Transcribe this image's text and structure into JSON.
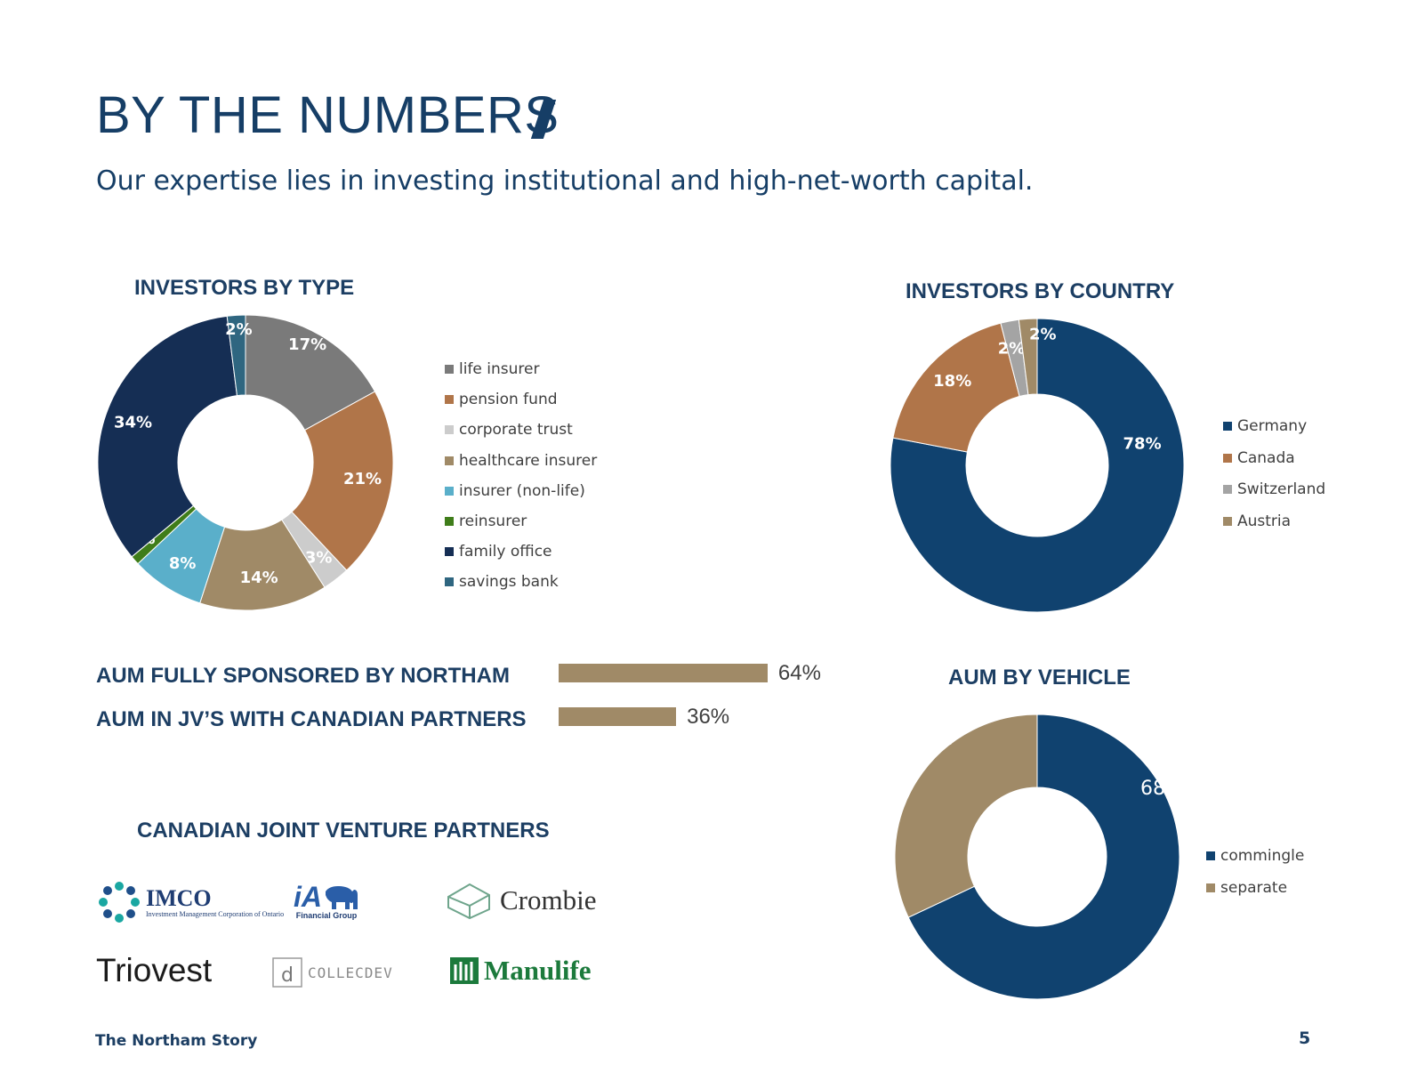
{
  "header": {
    "title": "BY THE NUMBERS",
    "subtitle": "Our expertise lies in investing institutional and high-net-worth capital."
  },
  "chart_data": [
    {
      "type": "pie",
      "title": "INVESTORS BY TYPE",
      "donut": true,
      "categories": [
        "life insurer",
        "pension fund",
        "corporate trust",
        "healthcare insurer",
        "insurer (non-life)",
        "reinsurer",
        "family office",
        "savings bank"
      ],
      "values": [
        17,
        21,
        3,
        14,
        8,
        1,
        34,
        2
      ],
      "labels": [
        "17%",
        "21%",
        "3%",
        "14%",
        "8%",
        "1%",
        "34%",
        "2%"
      ],
      "colors": [
        "#7a7a7a",
        "#b07549",
        "#cccccc",
        "#a08a67",
        "#5aafca",
        "#3f7d1a",
        "#152e54",
        "#2f6680"
      ],
      "legend_position": "right"
    },
    {
      "type": "pie",
      "title": "INVESTORS BY COUNTRY",
      "donut": true,
      "categories": [
        "Germany",
        "Canada",
        "Switzerland",
        "Austria"
      ],
      "values": [
        78,
        18,
        2,
        2
      ],
      "labels": [
        "78%",
        "18%",
        "2%",
        "2%"
      ],
      "colors": [
        "#10426f",
        "#b07549",
        "#a4a4a4",
        "#a08a67"
      ],
      "legend_position": "right"
    },
    {
      "type": "bar",
      "orientation": "horizontal",
      "categories": [
        "AUM FULLY SPONSORED BY NORTHAM",
        "AUM IN JV’S WITH CANADIAN PARTNERS"
      ],
      "values": [
        64,
        36
      ],
      "labels": [
        "64%",
        "36%"
      ],
      "xlim": [
        0,
        100
      ],
      "colors": [
        "#a08a67"
      ]
    },
    {
      "type": "pie",
      "title": "AUM BY VEHICLE",
      "donut": true,
      "categories": [
        "commingle",
        "separate"
      ],
      "values": [
        68,
        32
      ],
      "labels": [
        "68%",
        "32%"
      ],
      "colors": [
        "#10426f",
        "#a08a67"
      ],
      "legend_position": "right"
    }
  ],
  "partners": {
    "title": "CANADIAN JOINT VENTURE PARTNERS",
    "logos": [
      {
        "name": "IMCO",
        "sub": "Investment Management Corporation of Ontario"
      },
      {
        "name": "iA",
        "sub": "Financial Group"
      },
      {
        "name": "Crombie"
      },
      {
        "name": "Triovest"
      },
      {
        "name": "COLLECDEV"
      },
      {
        "name": "Manulife"
      }
    ]
  },
  "footer": {
    "left": "The Northam Story",
    "page_number": "5"
  }
}
